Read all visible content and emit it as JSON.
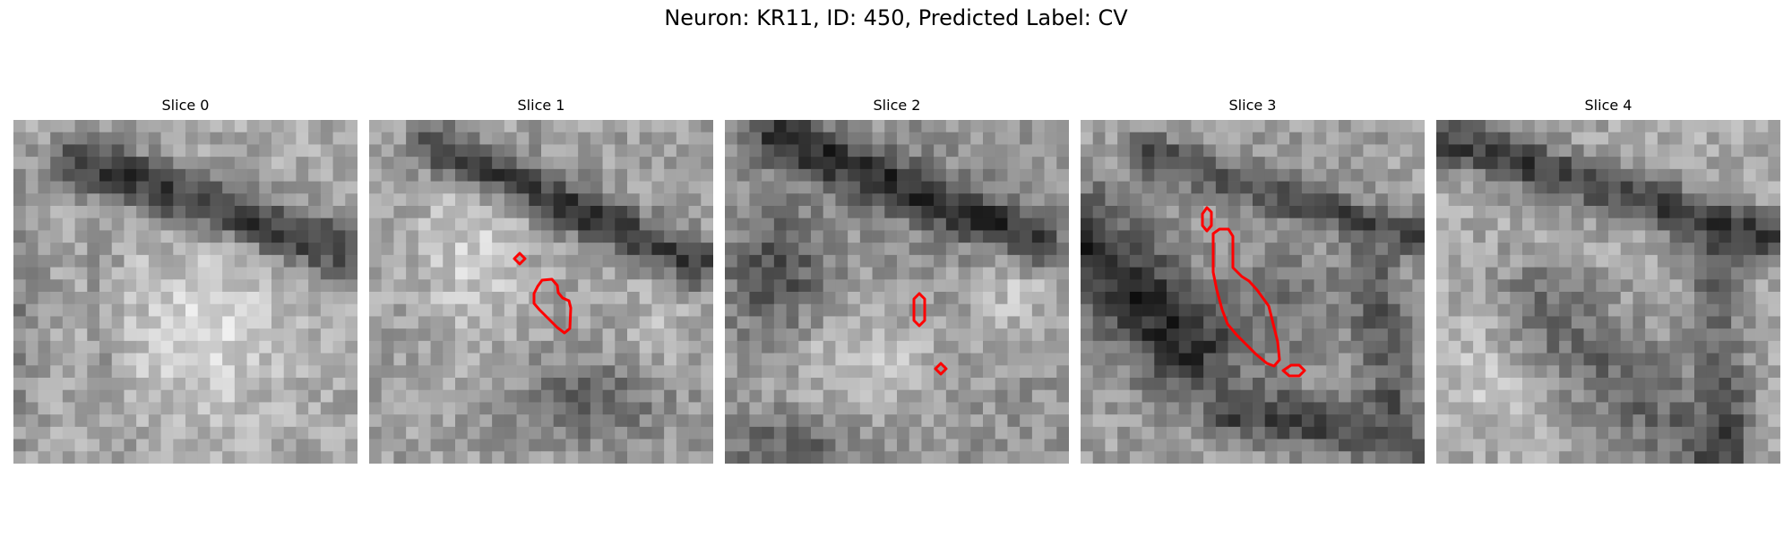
{
  "figure": {
    "title": "Neuron: KR11, ID: 450, Predicted Label: CV"
  },
  "panels": [
    {
      "title": "Slice 0",
      "has_contour": false
    },
    {
      "title": "Slice 1",
      "has_contour": true
    },
    {
      "title": "Slice 2",
      "has_contour": true
    },
    {
      "title": "Slice 3",
      "has_contour": true
    },
    {
      "title": "Slice 4",
      "has_contour": false
    }
  ],
  "colors": {
    "contour": "#ff0000",
    "background": "#ffffff"
  }
}
